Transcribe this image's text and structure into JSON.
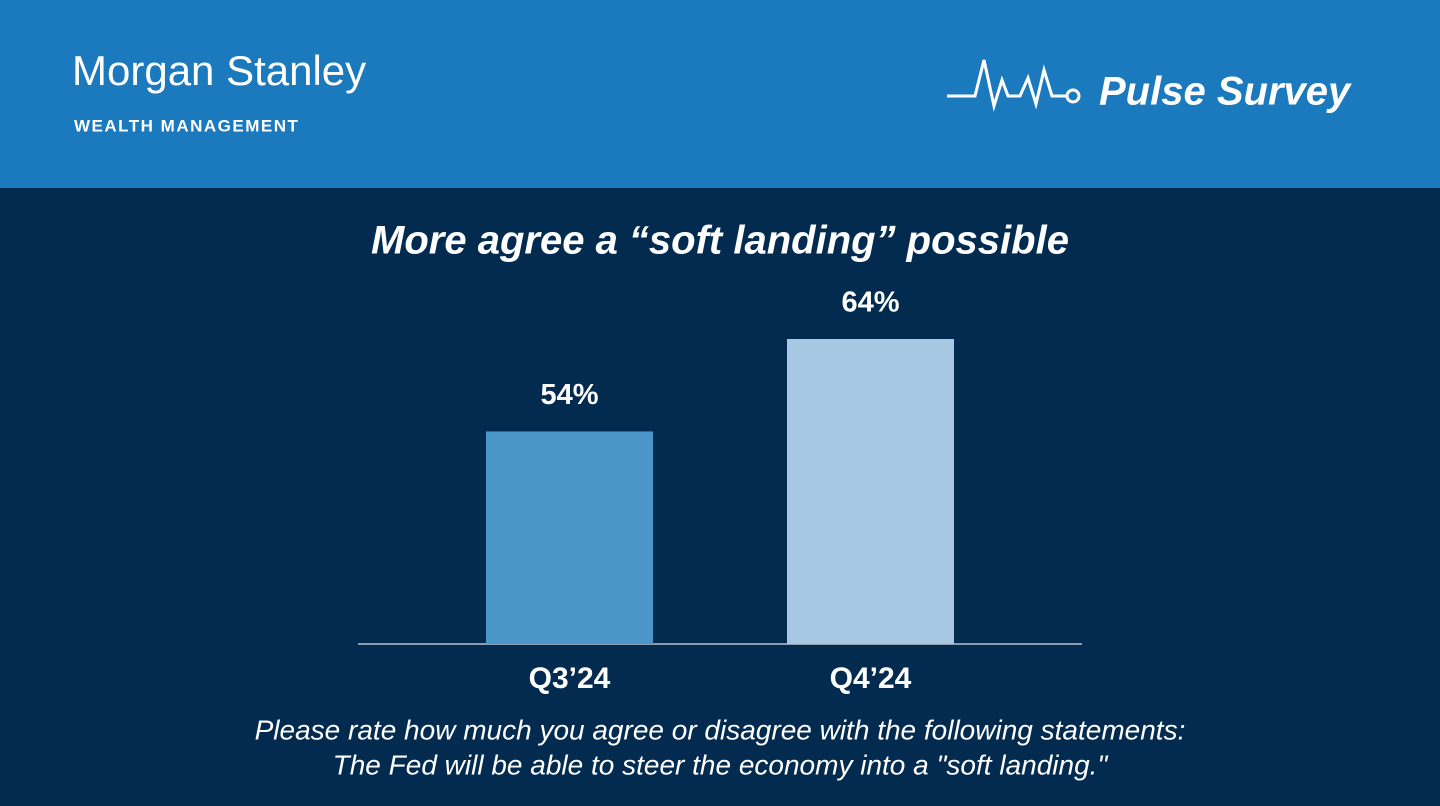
{
  "header": {
    "brand": "Morgan Stanley",
    "division": "WEALTH MANAGEMENT",
    "product": "Pulse Survey"
  },
  "chart_data": {
    "type": "bar",
    "title": "More agree a “soft landing” possible",
    "categories": [
      "Q3’24",
      "Q4’24"
    ],
    "values": [
      54,
      64
    ],
    "value_labels": [
      "54%",
      "64%"
    ],
    "colors": [
      "#4a96c9",
      "#a6c8e2"
    ],
    "ylim": [
      31,
      64
    ]
  },
  "footnote": [
    "Please rate how much you agree or disagree with the following statements:",
    "The Fed will be able to steer the economy into a \"soft landing.\""
  ]
}
